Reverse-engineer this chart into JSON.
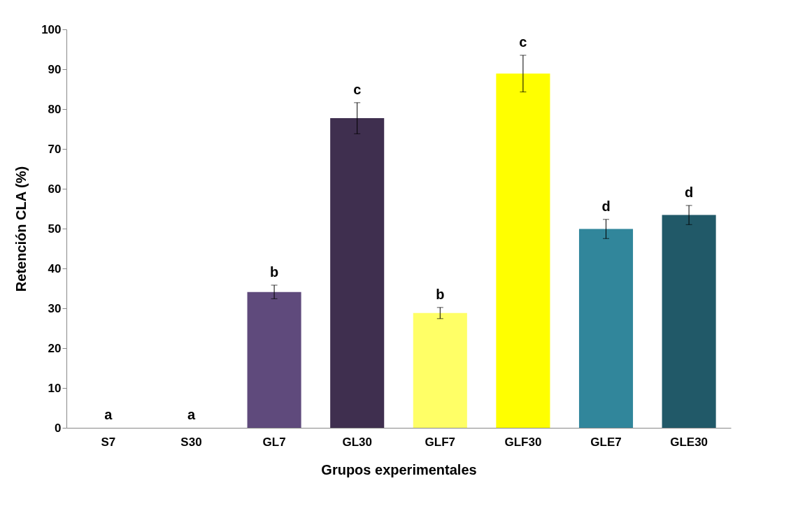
{
  "chart_data": {
    "type": "bar",
    "xlabel": "Grupos experimentales",
    "ylabel": "Retención CLA  (%)",
    "categories": [
      "S7",
      "S30",
      "GL7",
      "GL30",
      "GLF7",
      "GLF30",
      "GLE7",
      "GLE30"
    ],
    "values": [
      0,
      0,
      34.1,
      77.7,
      28.8,
      88.9,
      49.9,
      53.4
    ],
    "errors": [
      null,
      null,
      1.7,
      3.9,
      1.4,
      4.6,
      2.4,
      2.4
    ],
    "colors": [
      "#5f4a7c",
      "#3f2f4f",
      "#5f4a7c",
      "#3f2f4f",
      "#ffff66",
      "#ffff00",
      "#31869b",
      "#215968"
    ],
    "ylim": [
      0,
      100
    ],
    "yticks": [
      0,
      10,
      20,
      30,
      40,
      50,
      60,
      70,
      80,
      90,
      100
    ],
    "grid": false,
    "annotations": [
      {
        "text": "a",
        "x": "S7",
        "y": 0
      },
      {
        "text": "a",
        "x": "S30",
        "y": 0
      },
      {
        "text": "b",
        "x": "GL7",
        "y": 35.8
      },
      {
        "text": "c",
        "x": "GL30",
        "y": 81.6
      },
      {
        "text": "b",
        "x": "GLF7",
        "y": 30.2
      },
      {
        "text": "c",
        "x": "GLF30",
        "y": 93.5
      },
      {
        "text": "d",
        "x": "GLE7",
        "y": 52.3
      },
      {
        "text": "d",
        "x": "GLE30",
        "y": 55.8
      }
    ]
  }
}
